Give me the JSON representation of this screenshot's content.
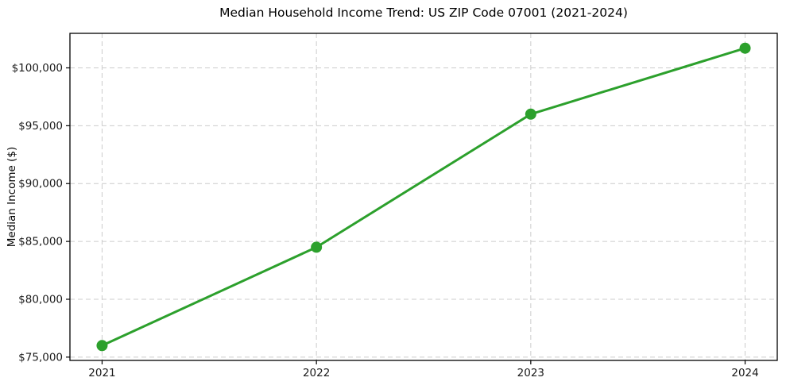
{
  "chart_data": {
    "type": "line",
    "title": "Median Household Income Trend: US ZIP Code 07001 (2021-2024)",
    "xlabel": "",
    "ylabel": "Median Income ($)",
    "x": [
      2021,
      2022,
      2023,
      2024
    ],
    "x_tick_labels": [
      "2021",
      "2022",
      "2023",
      "2024"
    ],
    "series": [
      {
        "name": "median_household_income",
        "values": [
          76000,
          84500,
          96000,
          101700
        ]
      }
    ],
    "y_ticks": [
      75000,
      80000,
      85000,
      90000,
      95000,
      100000
    ],
    "y_tick_labels": [
      "$75,000",
      "$80,000",
      "$85,000",
      "$90,000",
      "$95,000",
      "$100,000"
    ],
    "xlim": [
      2020.85,
      2024.15
    ],
    "ylim": [
      74715,
      102985
    ],
    "grid": true,
    "grid_style": "dashed",
    "legend": "none",
    "marker": "circle",
    "colors": {
      "line": "#2ca02c",
      "marker": "#2ca02c",
      "grid": "#cccccc",
      "axis": "#000000",
      "text": "#1a1a1a",
      "background": "#ffffff"
    }
  }
}
